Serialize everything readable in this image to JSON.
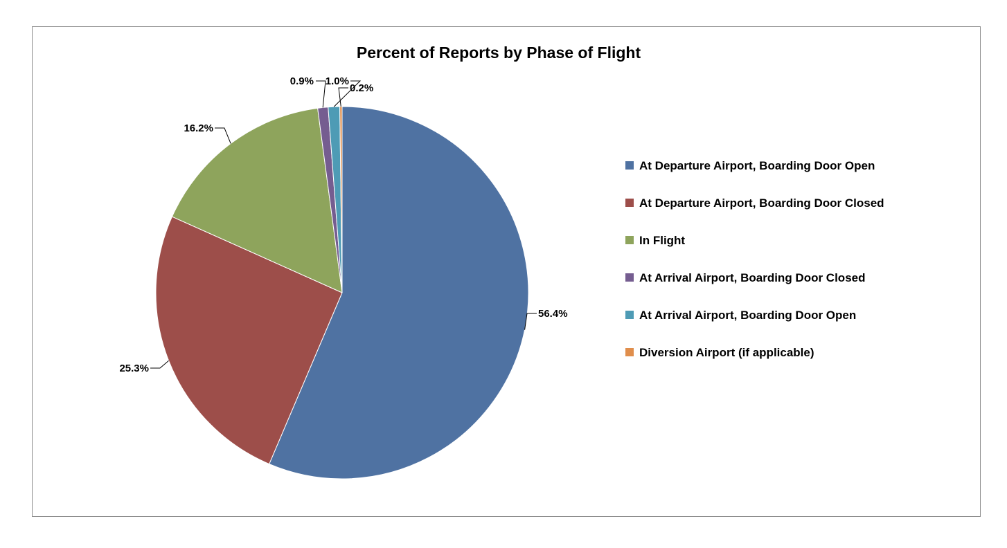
{
  "chart_data": {
    "type": "pie",
    "title": "Percent of Reports by Phase of Flight",
    "categories": [
      "At Departure Airport, Boarding Door Open",
      "At Departure Airport, Boarding Door Closed",
      "In Flight",
      "At Arrival Airport, Boarding Door Closed",
      "At Arrival Airport, Boarding Door Open",
      "Diversion Airport (if applicable)"
    ],
    "values": [
      56.4,
      25.3,
      16.2,
      0.9,
      1.0,
      0.2
    ],
    "data_labels": [
      "56.4%",
      "25.3%",
      "16.2%",
      "0.9%",
      "1.0%",
      "0.2%"
    ],
    "colors": [
      "#4F72A2",
      "#9D4E4A",
      "#8EA45C",
      "#755D90",
      "#4E9BB5",
      "#E08E4C"
    ],
    "legend_position": "right",
    "start_angle": "12 o'clock",
    "direction": "clockwise"
  }
}
